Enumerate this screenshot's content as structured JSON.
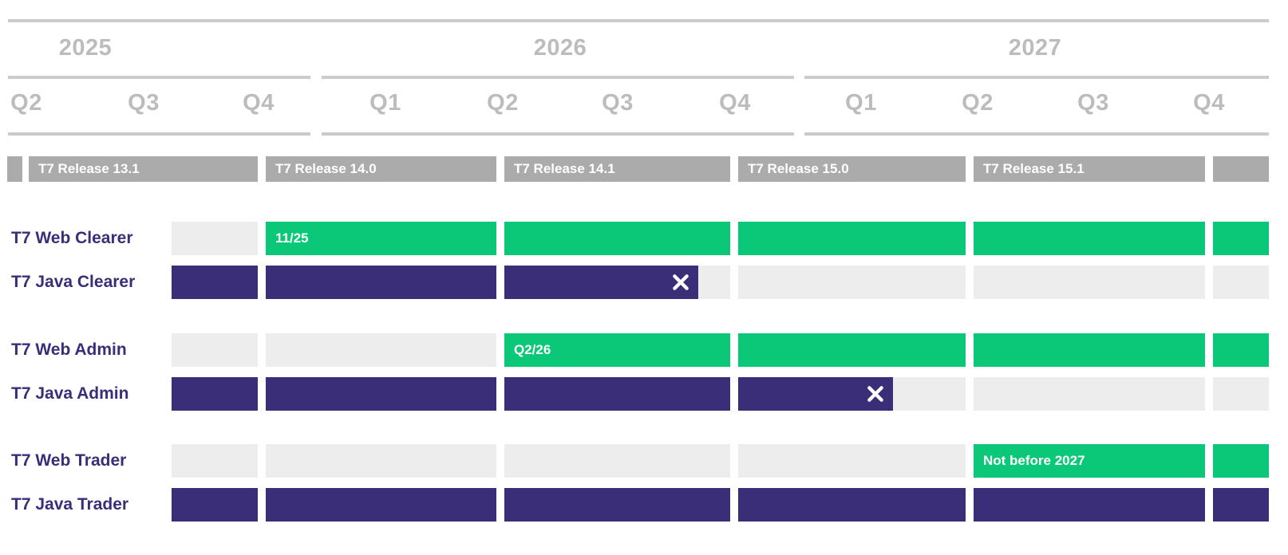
{
  "colors": {
    "available_green": "#0AC878",
    "legacy_purple": "#3A2E78",
    "label_purple": "#3A2E79",
    "release_gray": "#ABABAB",
    "inactive_gray": "#EDEDED",
    "line_gray": "#CBCBCB",
    "header_text": "#BCBCBC"
  },
  "timeline": {
    "years": [
      {
        "label": "2025",
        "quarters": [
          "Q2",
          "Q3",
          "Q4"
        ]
      },
      {
        "label": "2026",
        "quarters": [
          "Q1",
          "Q2",
          "Q3",
          "Q4"
        ]
      },
      {
        "label": "2027",
        "quarters": [
          "Q1",
          "Q2",
          "Q3",
          "Q4"
        ]
      }
    ]
  },
  "releases": [
    "T7 Release 13.1",
    "T7 Release 14.0",
    "T7 Release 14.1",
    "T7 Release 15.0",
    "T7 Release 15.1"
  ],
  "chart_data": {
    "type": "gantt",
    "title": "",
    "x_range": [
      "2025-Q2",
      "2027-Q4"
    ],
    "columns": [
      "T7 Release 13.1",
      "T7 Release 14.0",
      "T7 Release 14.1",
      "T7 Release 15.0",
      "T7 Release 15.1"
    ],
    "legend_position": "none",
    "rows": [
      {
        "label": "T7 Web Clearer",
        "segments": [
          {
            "state": "inactive"
          },
          {
            "state": "available",
            "note": "11/25"
          },
          {
            "state": "available"
          },
          {
            "state": "available"
          },
          {
            "state": "available"
          },
          {
            "state": "available"
          }
        ]
      },
      {
        "label": "T7 Java Clearer",
        "segments": [
          {
            "state": "legacy"
          },
          {
            "state": "legacy"
          },
          {
            "state": "legacy",
            "end_of_support": true,
            "coverage": 0.86
          },
          {
            "state": "inactive"
          },
          {
            "state": "inactive"
          },
          {
            "state": "inactive"
          }
        ]
      },
      {
        "label": "T7 Web Admin",
        "segments": [
          {
            "state": "inactive"
          },
          {
            "state": "inactive"
          },
          {
            "state": "available",
            "note": "Q2/26"
          },
          {
            "state": "available"
          },
          {
            "state": "available"
          },
          {
            "state": "available"
          }
        ]
      },
      {
        "label": "T7 Java Admin",
        "segments": [
          {
            "state": "legacy"
          },
          {
            "state": "legacy"
          },
          {
            "state": "legacy"
          },
          {
            "state": "legacy",
            "end_of_support": true,
            "coverage": 0.68
          },
          {
            "state": "inactive"
          },
          {
            "state": "inactive"
          }
        ]
      },
      {
        "label": "T7 Web Trader",
        "segments": [
          {
            "state": "inactive"
          },
          {
            "state": "inactive"
          },
          {
            "state": "inactive"
          },
          {
            "state": "inactive"
          },
          {
            "state": "available",
            "note": "Not before 2027"
          },
          {
            "state": "available"
          }
        ]
      },
      {
        "label": "T7 Java Trader",
        "segments": [
          {
            "state": "legacy"
          },
          {
            "state": "legacy"
          },
          {
            "state": "legacy"
          },
          {
            "state": "legacy"
          },
          {
            "state": "legacy"
          },
          {
            "state": "legacy"
          }
        ]
      }
    ]
  }
}
